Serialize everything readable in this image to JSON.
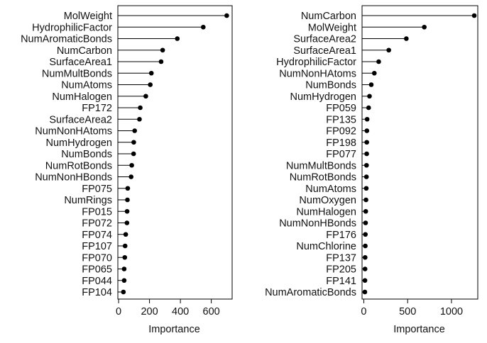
{
  "chart_data": [
    {
      "type": "dot",
      "xlabel": "Importance",
      "xticks": [
        0,
        200,
        400,
        600
      ],
      "xlim": [
        -5,
        735
      ],
      "grid": false,
      "categories": [
        "MolWeight",
        "HydrophilicFactor",
        "NumAromaticBonds",
        "NumCarbon",
        "SurfaceArea1",
        "NumMultBonds",
        "NumAtoms",
        "NumHalogen",
        "FP172",
        "SurfaceArea2",
        "NumNonHAtoms",
        "NumHydrogen",
        "NumBonds",
        "NumRotBonds",
        "NumNonHBonds",
        "FP075",
        "NumRings",
        "FP015",
        "FP072",
        "FP074",
        "FP107",
        "FP070",
        "FP065",
        "FP044",
        "FP104"
      ],
      "values": [
        700,
        548,
        380,
        285,
        275,
        212,
        205,
        176,
        140,
        135,
        104,
        98,
        97,
        85,
        81,
        59,
        57,
        55,
        54,
        46,
        42,
        40,
        36,
        36,
        31
      ]
    },
    {
      "type": "dot",
      "xlabel": "Importance",
      "xticks": [
        0,
        500,
        1000
      ],
      "xlim": [
        -20,
        1300
      ],
      "grid": false,
      "categories": [
        "NumCarbon",
        "MolWeight",
        "SurfaceArea2",
        "SurfaceArea1",
        "HydrophilicFactor",
        "NumNonHAtoms",
        "NumBonds",
        "NumHydrogen",
        "FP059",
        "FP135",
        "FP092",
        "FP198",
        "FP077",
        "NumMultBonds",
        "NumRotBonds",
        "NumAtoms",
        "NumOxygen",
        "NumHalogen",
        "NumNonHBonds",
        "FP176",
        "NumChlorine",
        "FP137",
        "FP205",
        "FP141",
        "NumAromaticBonds"
      ],
      "values": [
        1260,
        690,
        485,
        285,
        170,
        120,
        85,
        65,
        55,
        38,
        35,
        34,
        33,
        31,
        30,
        28,
        25,
        22,
        20,
        18,
        17,
        15,
        14,
        13,
        12
      ]
    }
  ]
}
